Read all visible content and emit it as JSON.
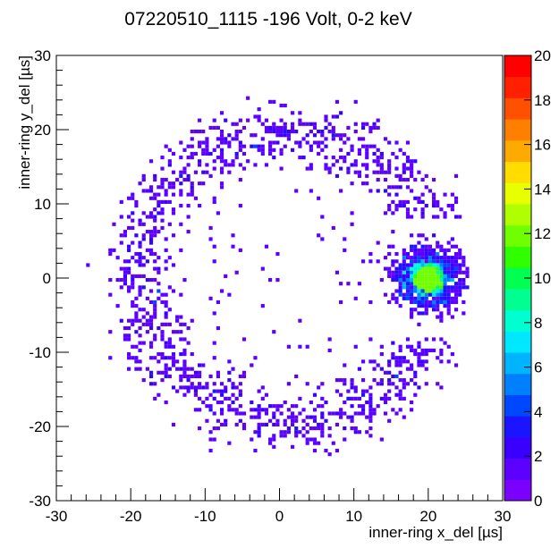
{
  "chart_data": {
    "type": "heatmap",
    "title": "07220510_1115 -196 Volt, 0-2 keV",
    "xlabel": "inner-ring x_del [µs]",
    "ylabel": "inner-ring y_del [µs]",
    "xlim": [
      -30,
      30
    ],
    "ylim": [
      -30,
      30
    ],
    "x_ticks": [
      -30,
      -20,
      -10,
      0,
      10,
      20,
      30
    ],
    "y_ticks": [
      -30,
      -20,
      -10,
      0,
      10,
      20,
      30
    ],
    "bin_width": 0.5,
    "zlim": [
      0,
      20
    ],
    "z_ticks": [
      0,
      2,
      4,
      6,
      8,
      10,
      12,
      14,
      16,
      18,
      20
    ],
    "palette": [
      "#7a00ff",
      "#5c00ff",
      "#3a00ff",
      "#1a14ff",
      "#0048ff",
      "#0080ff",
      "#00b4ff",
      "#00e8ff",
      "#00ffd0",
      "#00ff90",
      "#00ff50",
      "#30ff00",
      "#70ff00",
      "#b0ff00",
      "#e8ff00",
      "#ffdd00",
      "#ffaa00",
      "#ff8000",
      "#ff5000",
      "#ff2000",
      "#ff0000"
    ],
    "description_of_distribution": {
      "ring_center": [
        1.5,
        0.0
      ],
      "ring_radius": 19.5,
      "cluster_center": [
        20.0,
        0.0
      ],
      "cluster_peak_count": 12
    },
    "grid": false
  }
}
